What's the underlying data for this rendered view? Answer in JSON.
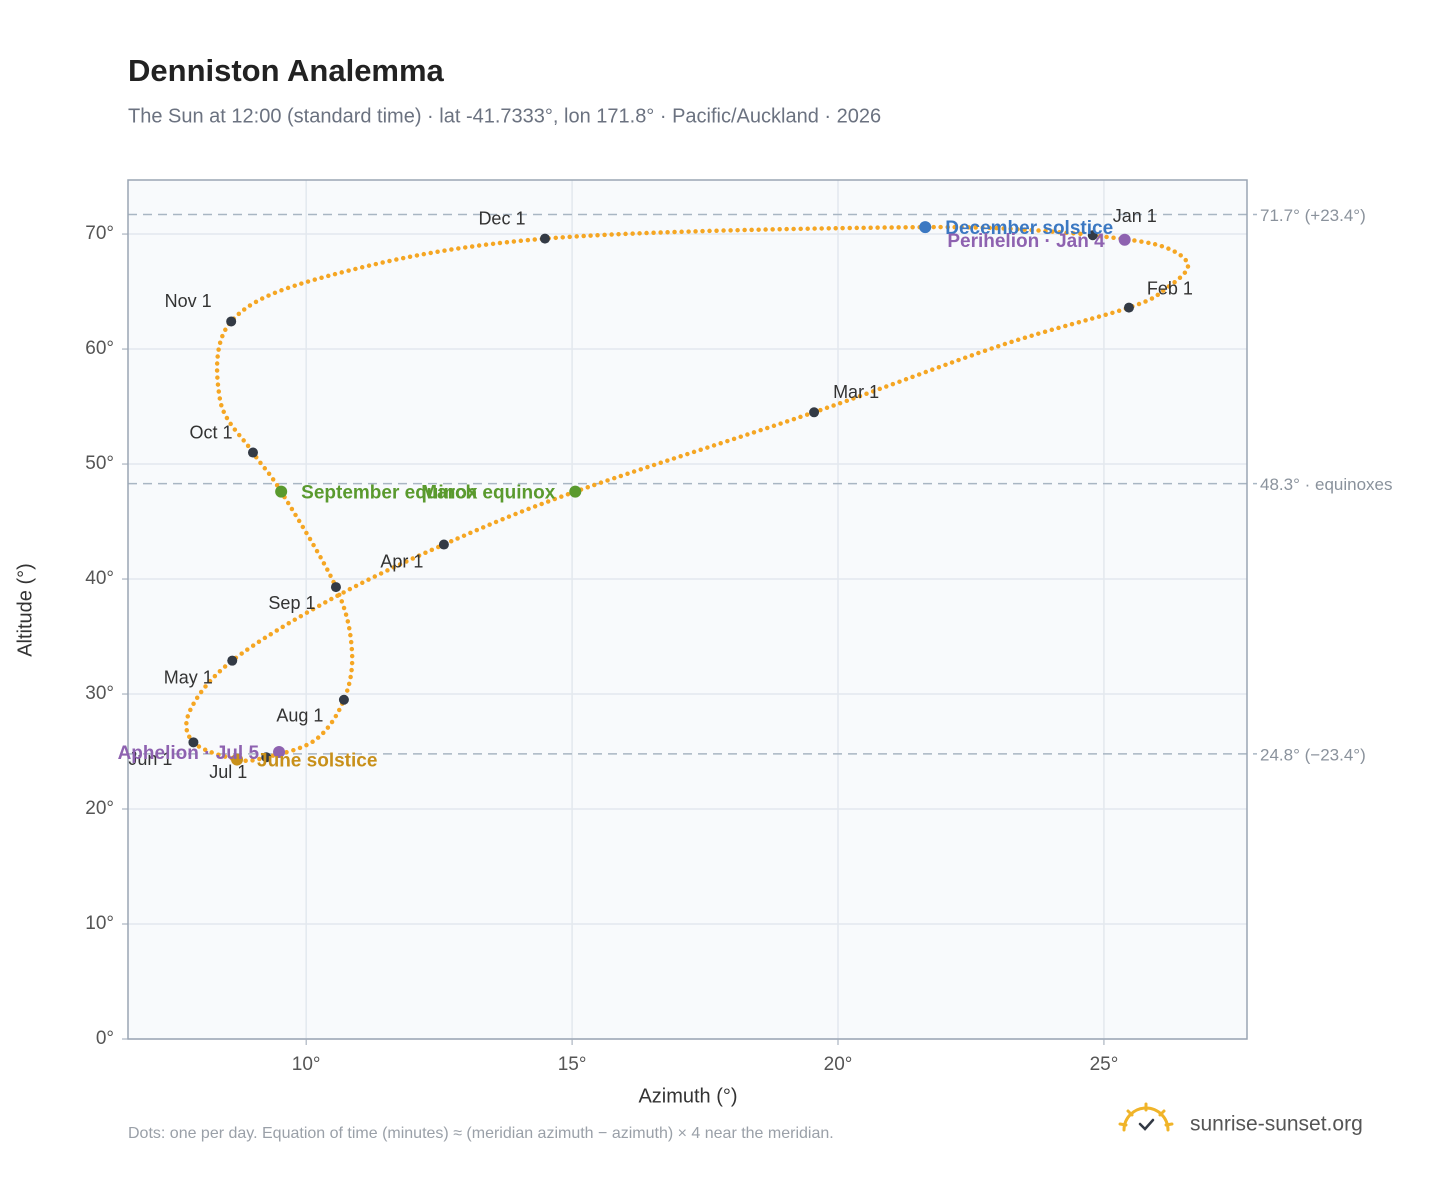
{
  "chart_data": {
    "type": "analemma",
    "title": "Denniston Analemma",
    "subtitle": "The Sun at 12:00 (standard time) · lat -41.7333°, lon 171.8° · Pacific/Auckland · 2026",
    "x_label": "Azimuth (°)",
    "y_label": "Altitude (°)",
    "footnote": "Dots: one per day. Equation of time (minutes) ≈ (meridian azimuth − azimuth) × 4 near the meridian.",
    "brand": "sunrise-sunset.org",
    "xlim": [
      6.65,
      27.69
    ],
    "ylim": [
      0,
      74.7
    ],
    "xticks": [
      {
        "value": 10,
        "label": "10°"
      },
      {
        "value": 15,
        "label": "15°"
      },
      {
        "value": 20,
        "label": "20°"
      },
      {
        "value": 25,
        "label": "25°"
      }
    ],
    "yticks": [
      {
        "value": 0,
        "label": "0°"
      },
      {
        "value": 10,
        "label": "10°"
      },
      {
        "value": 20,
        "label": "20°"
      },
      {
        "value": 30,
        "label": "30°"
      },
      {
        "value": 40,
        "label": "40°"
      },
      {
        "value": 50,
        "label": "50°"
      },
      {
        "value": 60,
        "label": "60°"
      },
      {
        "value": 70,
        "label": "70°"
      }
    ],
    "grid": true,
    "color": "#f5a623",
    "x": [
      24.79,
      26.05,
      26.58,
      26.15,
      25.47,
      23.05,
      19.55,
      15.06,
      12.59,
      10.45,
      8.61,
      7.82,
      7.88,
      8.7,
      9.25,
      10.17,
      10.71,
      10.86,
      10.56,
      9.53,
      9.0,
      8.38,
      8.59,
      10.45,
      14.49,
      21.64,
      24.64
    ],
    "values": [
      69.9,
      69.0,
      67.3,
      65.2,
      63.6,
      60.3,
      54.5,
      47.6,
      43.0,
      38.2,
      32.9,
      28.6,
      25.8,
      24.3,
      24.5,
      26.0,
      29.5,
      33.8,
      39.3,
      47.6,
      51.0,
      55.6,
      62.4,
      66.4,
      69.6,
      70.6,
      70.0
    ],
    "markers": {
      "labels": [
        "Jan 1",
        "Feb 1",
        "Mar 1",
        "Apr 1",
        "May 1",
        "Jun 1",
        "Jul 1",
        "Aug 1",
        "Sep 1",
        "Oct 1",
        "Nov 1",
        "Dec 1"
      ],
      "x": [
        24.79,
        25.47,
        19.55,
        12.59,
        8.61,
        7.88,
        9.25,
        10.71,
        10.56,
        9.0,
        8.59,
        14.49
      ],
      "values": [
        69.9,
        63.6,
        54.5,
        43.0,
        32.9,
        25.8,
        24.5,
        29.5,
        39.3,
        51.0,
        62.4,
        69.6
      ],
      "color": "#333a45"
    },
    "events": [
      {
        "label": "December solstice",
        "x": 21.64,
        "value": 70.6,
        "color": "#3b78c2"
      },
      {
        "label": "Perihelion · Jan 4",
        "x": 25.39,
        "value": 69.5,
        "color": "#8e62b0"
      },
      {
        "label": "March equinox",
        "x": 15.06,
        "value": 47.6,
        "color": "#5a9a2e"
      },
      {
        "label": "September equinox",
        "x": 9.53,
        "value": 47.6,
        "color": "#5a9a2e"
      },
      {
        "label": "June solstice",
        "x": 8.7,
        "value": 24.3,
        "color": "#c8901a"
      },
      {
        "label": "Aphelion · Jul 5",
        "x": 9.49,
        "value": 24.96,
        "color": "#8e62b0"
      }
    ],
    "reference_lines": [
      {
        "value": 71.7,
        "label": "71.7° (+23.4°)"
      },
      {
        "value": 48.3,
        "label": "48.3° · equinoxes"
      },
      {
        "value": 24.8,
        "label": "24.8° (−23.4°)"
      }
    ]
  }
}
